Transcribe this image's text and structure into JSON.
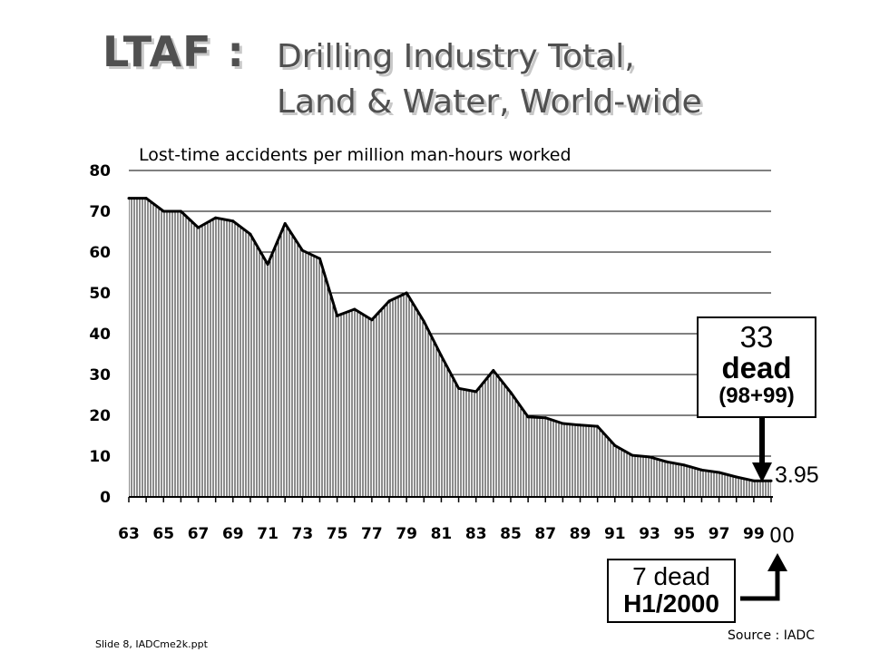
{
  "title": {
    "main": "LTAF :",
    "line1": "Drilling Industry Total,",
    "line2": "Land & Water, World-wide"
  },
  "chart_data": {
    "type": "area",
    "title": "Lost-time accidents per million man-hours worked",
    "xlabel": "",
    "ylabel": "",
    "ylim": [
      0,
      80
    ],
    "yticks": [
      0,
      10,
      20,
      30,
      40,
      50,
      60,
      70,
      80
    ],
    "x": [
      "63",
      "64",
      "65",
      "66",
      "67",
      "68",
      "69",
      "70",
      "71",
      "72",
      "73",
      "74",
      "75",
      "76",
      "77",
      "78",
      "79",
      "80",
      "81",
      "82",
      "83",
      "84",
      "85",
      "86",
      "87",
      "88",
      "89",
      "90",
      "91",
      "92",
      "93",
      "94",
      "95",
      "96",
      "97",
      "98",
      "99",
      "00"
    ],
    "values": [
      73.2,
      73.2,
      70,
      70,
      66,
      68.4,
      67.6,
      64.4,
      57,
      67,
      60.4,
      58.4,
      44.4,
      46,
      43.4,
      48,
      50,
      43,
      34.6,
      26.6,
      25.8,
      31,
      25.6,
      19.6,
      19.4,
      18,
      17.6,
      17.3,
      12.6,
      10.2,
      9.8,
      8.6,
      7.8,
      6.6,
      6,
      4.9,
      3.95,
      3.95
    ],
    "xtick_labels": [
      "63",
      "65",
      "67",
      "69",
      "71",
      "73",
      "75",
      "77",
      "79",
      "81",
      "83",
      "85",
      "87",
      "89",
      "91",
      "93",
      "95",
      "97",
      "99",
      "00"
    ],
    "annotations": {
      "box1": {
        "line1": "33",
        "line2": "dead",
        "line3": "(98+99)"
      },
      "last_value": "3.95",
      "box2": {
        "line1": "7 dead",
        "line2": "H1/2000"
      }
    }
  },
  "footer": {
    "source": "Source : IADC",
    "slide": "Slide 8, IADCme2k.ppt"
  }
}
